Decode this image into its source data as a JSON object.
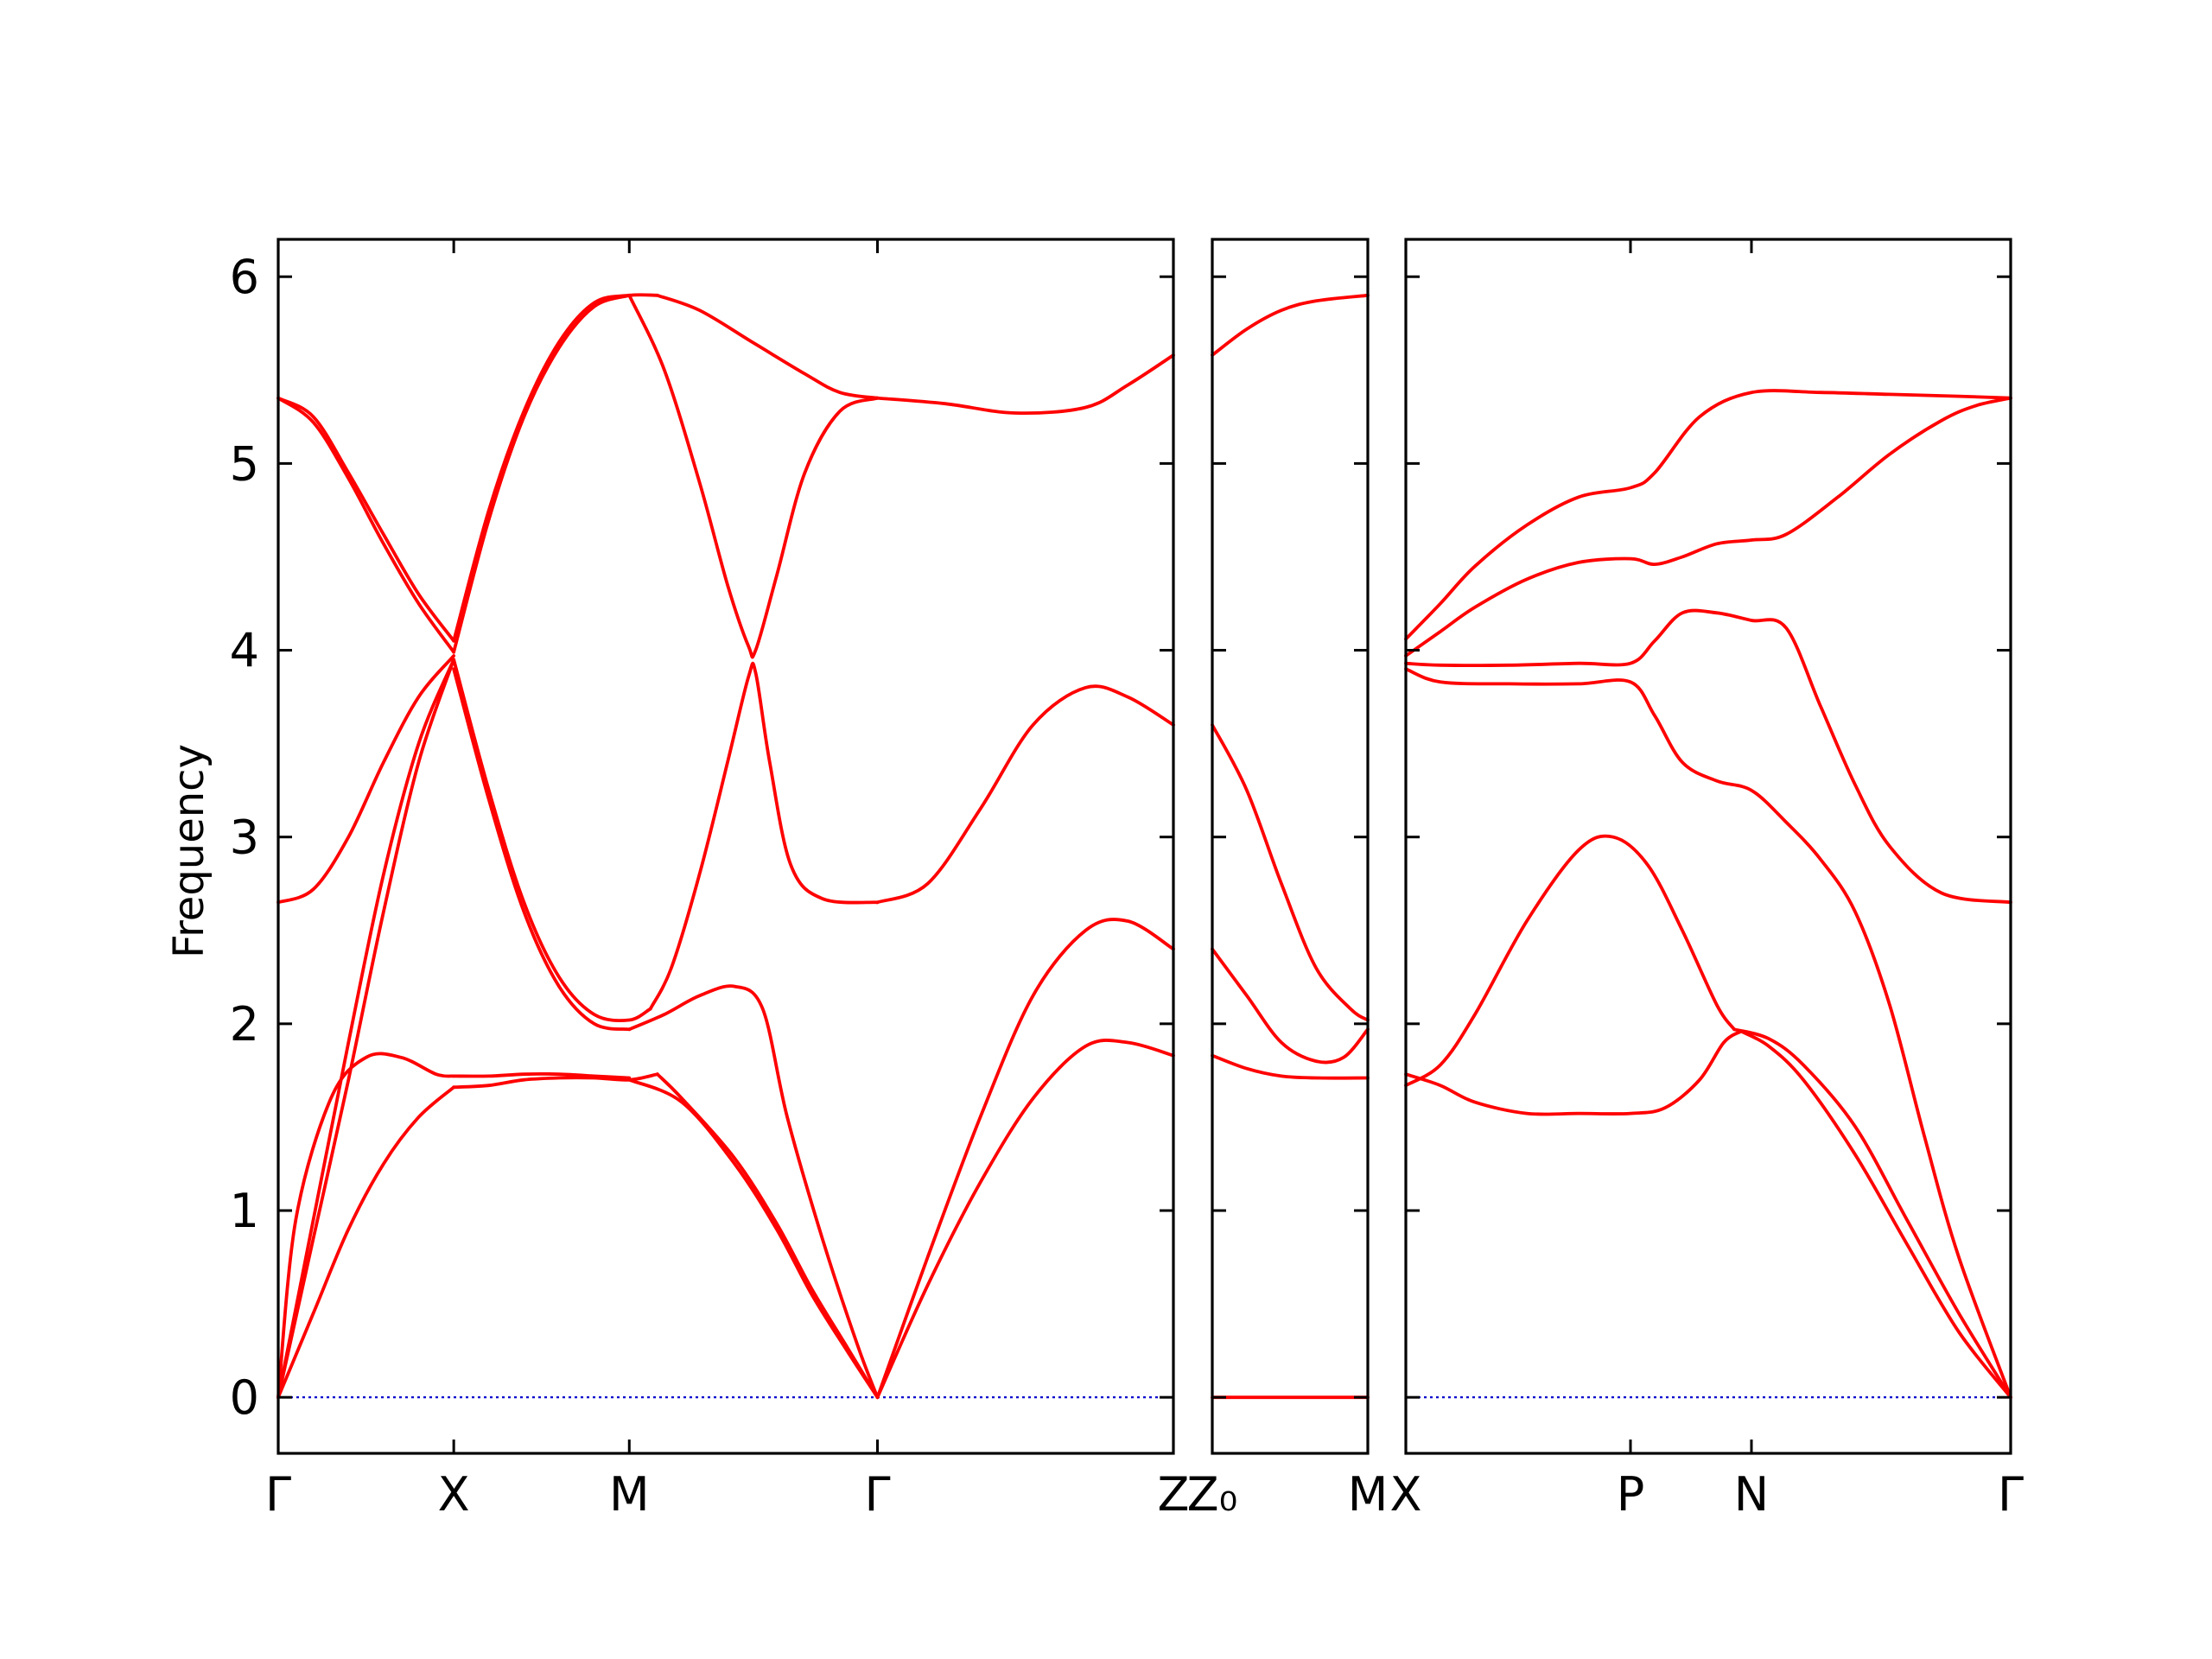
{
  "chart_data": {
    "type": "line",
    "title": "",
    "ylabel": "Frequency",
    "ylim": [
      -0.3,
      6.2
    ],
    "yticks": [
      "0",
      "1",
      "2",
      "3",
      "4",
      "5",
      "6"
    ],
    "band_color": "#ff0000",
    "zero_line_color": "#0000cc",
    "grid": false,
    "panels": [
      {
        "id": "panel-1",
        "xlim": [
          0,
          2.55
        ],
        "xticks": [
          {
            "x": 0,
            "label": "Γ"
          },
          {
            "x": 0.5,
            "label": "X"
          },
          {
            "x": 1.0,
            "label": "M"
          },
          {
            "x": 1.707,
            "label": "Γ"
          },
          {
            "x": 2.55,
            "label": "Z"
          }
        ],
        "series": [
          {
            "x": [
              0,
              0.1,
              0.2,
              0.3,
              0.4,
              0.5
            ],
            "y": [
              0,
              0.95,
              1.9,
              2.8,
              3.5,
              3.95
            ]
          },
          {
            "x": [
              0,
              0.1,
              0.2,
              0.3,
              0.4,
              0.5
            ],
            "y": [
              0,
              0.85,
              1.7,
              2.6,
              3.4,
              3.95
            ]
          },
          {
            "x": [
              0,
              0.05,
              0.15,
              0.25,
              0.35,
              0.45,
              0.5
            ],
            "y": [
              0,
              0.95,
              1.6,
              1.82,
              1.82,
              1.73,
              1.72
            ]
          },
          {
            "x": [
              0,
              0.1,
              0.2,
              0.3,
              0.4,
              0.5
            ],
            "y": [
              0,
              0.45,
              0.9,
              1.25,
              1.5,
              1.66
            ]
          },
          {
            "x": [
              0,
              0.1,
              0.2,
              0.3,
              0.4,
              0.5
            ],
            "y": [
              2.65,
              2.72,
              3.0,
              3.4,
              3.75,
              3.97
            ]
          },
          {
            "x": [
              0,
              0.1,
              0.2,
              0.3,
              0.4,
              0.5
            ],
            "y": [
              5.35,
              5.25,
              4.95,
              4.62,
              4.3,
              4.05
            ]
          },
          {
            "x": [
              0,
              0.1,
              0.2,
              0.3,
              0.4,
              0.5
            ],
            "y": [
              5.35,
              5.22,
              4.92,
              4.57,
              4.25,
              3.99
            ]
          },
          {
            "x": [
              0.5,
              0.6,
              0.7,
              0.8,
              0.9,
              1.0,
              1.08
            ],
            "y": [
              4.05,
              4.75,
              5.28,
              5.65,
              5.86,
              5.9,
              5.9
            ]
          },
          {
            "x": [
              0.5,
              0.6,
              0.7,
              0.8,
              0.9,
              1.0
            ],
            "y": [
              3.99,
              4.7,
              5.25,
              5.62,
              5.84,
              5.9
            ]
          },
          {
            "x": [
              0.5,
              0.6,
              0.7,
              0.8,
              0.9,
              1.0,
              1.06
            ],
            "y": [
              3.95,
              3.25,
              2.65,
              2.25,
              2.05,
              2.02,
              2.08
            ]
          },
          {
            "x": [
              0.5,
              0.6,
              0.7,
              0.8,
              0.9,
              1.0
            ],
            "y": [
              3.9,
              3.2,
              2.6,
              2.2,
              2.0,
              1.97
            ]
          },
          {
            "x": [
              0.5,
              0.6,
              0.7,
              0.8,
              0.9,
              1.0
            ],
            "y": [
              1.72,
              1.72,
              1.73,
              1.73,
              1.72,
              1.71
            ]
          },
          {
            "x": [
              0.5,
              0.6,
              0.7,
              0.8,
              0.9,
              1.0,
              1.08
            ],
            "y": [
              1.66,
              1.67,
              1.7,
              1.71,
              1.71,
              1.7,
              1.73
            ]
          },
          {
            "x": [
              1.0,
              1.15,
              1.3,
              1.42,
              1.52,
              1.62,
              1.707
            ],
            "y": [
              1.7,
              1.58,
              1.25,
              0.9,
              0.55,
              0.25,
              0
            ]
          },
          {
            "x": [
              1.08,
              1.15,
              1.3,
              1.42,
              1.52,
              1.62,
              1.707
            ],
            "y": [
              1.73,
              1.6,
              1.28,
              0.93,
              0.58,
              0.27,
              0
            ]
          },
          {
            "x": [
              1.0,
              1.1,
              1.2,
              1.3,
              1.38,
              1.45,
              1.55,
              1.65,
              1.707
            ],
            "y": [
              1.97,
              2.05,
              2.15,
              2.2,
              2.08,
              1.5,
              0.85,
              0.28,
              0
            ]
          },
          {
            "x": [
              1.06,
              1.12,
              1.2,
              1.28,
              1.34,
              1.36,
              1.4,
              1.46,
              1.55,
              1.707
            ],
            "y": [
              2.08,
              2.3,
              2.8,
              3.4,
              3.86,
              3.88,
              3.4,
              2.85,
              2.67,
              2.65
            ]
          },
          {
            "x": [
              1.0,
              1.1,
              1.2,
              1.28,
              1.34,
              1.36,
              1.42,
              1.5,
              1.6,
              1.707
            ],
            "y": [
              5.9,
              5.5,
              4.9,
              4.35,
              4.02,
              4.0,
              4.4,
              4.95,
              5.28,
              5.35
            ]
          },
          {
            "x": [
              1.08,
              1.2,
              1.35,
              1.5,
              1.6,
              1.707
            ],
            "y": [
              5.9,
              5.82,
              5.65,
              5.48,
              5.38,
              5.35
            ]
          },
          {
            "x": [
              1.707,
              1.9,
              2.1,
              2.3,
              2.42,
              2.55
            ],
            "y": [
              5.35,
              5.32,
              5.27,
              5.3,
              5.42,
              5.58
            ]
          },
          {
            "x": [
              1.707,
              1.85,
              2.0,
              2.15,
              2.3,
              2.42,
              2.55
            ],
            "y": [
              2.65,
              2.75,
              3.15,
              3.6,
              3.8,
              3.75,
              3.6
            ]
          },
          {
            "x": [
              1.707,
              1.85,
              2.0,
              2.15,
              2.3,
              2.42,
              2.55
            ],
            "y": [
              0,
              0.75,
              1.5,
              2.15,
              2.5,
              2.55,
              2.4
            ]
          },
          {
            "x": [
              1.707,
              1.85,
              2.0,
              2.15,
              2.3,
              2.42,
              2.55
            ],
            "y": [
              0,
              0.6,
              1.15,
              1.6,
              1.88,
              1.9,
              1.83
            ]
          }
        ]
      },
      {
        "id": "panel-2",
        "xlim": [
          0,
          0.45
        ],
        "xticks": [
          {
            "x": 0,
            "label": "Z₀"
          },
          {
            "x": 0.45,
            "label": "M"
          }
        ],
        "series": [
          {
            "x": [
              0,
              0.1,
              0.2,
              0.3,
              0.45
            ],
            "y": [
              5.58,
              5.72,
              5.82,
              5.87,
              5.9
            ]
          },
          {
            "x": [
              0,
              0.1,
              0.2,
              0.3,
              0.4,
              0.45
            ],
            "y": [
              3.6,
              3.25,
              2.75,
              2.3,
              2.08,
              2.02
            ]
          },
          {
            "x": [
              0,
              0.1,
              0.2,
              0.3,
              0.38,
              0.45
            ],
            "y": [
              2.4,
              2.15,
              1.9,
              1.8,
              1.82,
              1.97
            ]
          },
          {
            "x": [
              0,
              0.1,
              0.2,
              0.3,
              0.45
            ],
            "y": [
              1.83,
              1.76,
              1.72,
              1.71,
              1.71
            ]
          },
          {
            "x": [
              0,
              0.45
            ],
            "y": [
              0,
              0
            ]
          }
        ]
      },
      {
        "id": "panel-3",
        "xlim": [
          0,
          1.75
        ],
        "xticks": [
          {
            "x": 0,
            "label": "X"
          },
          {
            "x": 0.65,
            "label": "P"
          },
          {
            "x": 1.0,
            "label": "N"
          },
          {
            "x": 1.75,
            "label": "Γ"
          }
        ],
        "series": [
          {
            "x": [
              0,
              0.1,
              0.2,
              0.35,
              0.5,
              0.65,
              0.72,
              0.85,
              1.0,
              1.2,
              1.4,
              1.6,
              1.75
            ],
            "y": [
              4.06,
              4.25,
              4.45,
              4.67,
              4.82,
              4.87,
              4.95,
              5.25,
              5.38,
              5.38,
              5.37,
              5.36,
              5.35
            ]
          },
          {
            "x": [
              0,
              0.1,
              0.2,
              0.35,
              0.5,
              0.65,
              0.72,
              0.8,
              0.9,
              1.0,
              1.1,
              1.25,
              1.4,
              1.55,
              1.65,
              1.75
            ],
            "y": [
              3.97,
              4.1,
              4.23,
              4.38,
              4.47,
              4.49,
              4.46,
              4.5,
              4.57,
              4.59,
              4.62,
              4.82,
              5.05,
              5.23,
              5.31,
              5.35
            ]
          },
          {
            "x": [
              0,
              0.1,
              0.3,
              0.5,
              0.65,
              0.72,
              0.8,
              0.9,
              1.0,
              1.1,
              1.2,
              1.3,
              1.4,
              1.55,
              1.75
            ],
            "y": [
              3.93,
              3.92,
              3.92,
              3.93,
              3.93,
              4.05,
              4.2,
              4.2,
              4.16,
              4.12,
              3.7,
              3.28,
              2.95,
              2.7,
              2.65
            ]
          },
          {
            "x": [
              0,
              0.1,
              0.3,
              0.5,
              0.65,
              0.72,
              0.8,
              0.9,
              1.0,
              1.1,
              1.2,
              1.3,
              1.4,
              1.5,
              1.6,
              1.75
            ],
            "y": [
              3.9,
              3.83,
              3.82,
              3.82,
              3.83,
              3.65,
              3.4,
              3.3,
              3.25,
              3.08,
              2.88,
              2.6,
              2.1,
              1.4,
              0.75,
              0
            ]
          },
          {
            "x": [
              0,
              0.1,
              0.2,
              0.35,
              0.5,
              0.6,
              0.7,
              0.8,
              0.9,
              0.95
            ],
            "y": [
              1.67,
              1.78,
              2.05,
              2.55,
              2.93,
              3.0,
              2.85,
              2.5,
              2.1,
              1.97
            ]
          },
          {
            "x": [
              0,
              0.1,
              0.2,
              0.35,
              0.5,
              0.65,
              0.75,
              0.85,
              0.92,
              0.97
            ],
            "y": [
              1.73,
              1.67,
              1.58,
              1.52,
              1.52,
              1.52,
              1.55,
              1.7,
              1.9,
              1.96
            ]
          },
          {
            "x": [
              0.95,
              1.05,
              1.15,
              1.3,
              1.45,
              1.6,
              1.75
            ],
            "y": [
              1.97,
              1.92,
              1.78,
              1.45,
              0.95,
              0.45,
              0
            ]
          },
          {
            "x": [
              0.97,
              1.05,
              1.15,
              1.3,
              1.45,
              1.6,
              1.75
            ],
            "y": [
              1.96,
              1.88,
              1.7,
              1.3,
              0.82,
              0.35,
              0
            ]
          }
        ]
      }
    ]
  }
}
